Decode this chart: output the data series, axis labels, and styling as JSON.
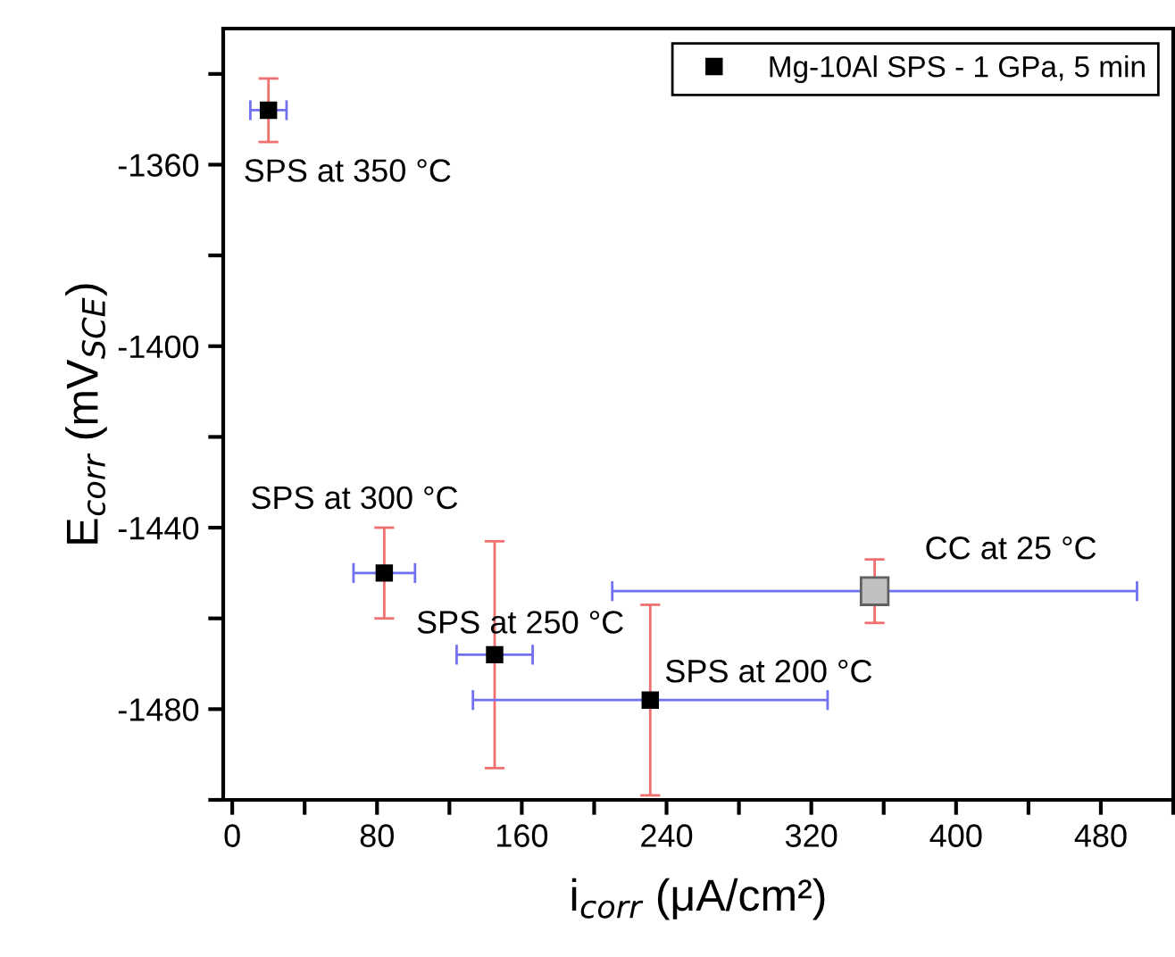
{
  "chart_data": {
    "type": "scatter",
    "xlabel": "i$_{corr}$ (μA/cm²)",
    "ylabel": "E$_{corr}$ (mV$_{SCE}$)",
    "xlim": [
      -5,
      520
    ],
    "ylim": [
      -1500,
      -1330
    ],
    "xticks": [
      0,
      {
        "value": 40,
        "label": null
      },
      80,
      {
        "value": 120,
        "label": null
      },
      160,
      {
        "value": 200,
        "label": null
      },
      240,
      {
        "value": 280,
        "label": null
      },
      320,
      {
        "value": 360,
        "label": null
      },
      400,
      {
        "value": 440,
        "label": null
      },
      480,
      {
        "value": 520,
        "label": null
      }
    ],
    "yticks": [
      {
        "value": -1340,
        "label": null
      },
      -1360,
      {
        "value": -1380,
        "label": null
      },
      -1400,
      {
        "value": -1420,
        "label": null
      },
      -1440,
      {
        "value": -1460,
        "label": null
      },
      -1480,
      {
        "value": -1500,
        "label": null
      }
    ],
    "marker": "square",
    "legend": "top right",
    "grid": false,
    "series": [
      {
        "name": "Mg-10Al SPS - 1 GPa, 5 min",
        "color": "#000000",
        "x": [
          20,
          84,
          145,
          231
        ],
        "values": [
          -1348,
          -1450,
          -1468,
          -1478
        ],
        "errors": [
          7,
          10,
          25,
          21
        ],
        "xerrors": [
          10,
          17,
          21,
          98
        ]
      },
      {
        "color": "#c0c0c0",
        "x": [
          355
        ],
        "values": [
          -1454
        ],
        "errors": [
          7
        ],
        "xerrors": [
          145
        ]
      }
    ],
    "annotations": [
      {
        "text": "SPS at 350 °C",
        "x": 20,
        "y": -1348
      },
      {
        "text": "SPS at 300 °C",
        "x": 84,
        "y": -1450
      },
      {
        "text": "SPS at 250 °C",
        "x": 145,
        "y": -1468
      },
      {
        "text": "SPS at 200 °C",
        "x": 231,
        "y": -1478
      },
      {
        "text": "CC at 25 °C",
        "x": 355,
        "y": -1454
      }
    ]
  }
}
